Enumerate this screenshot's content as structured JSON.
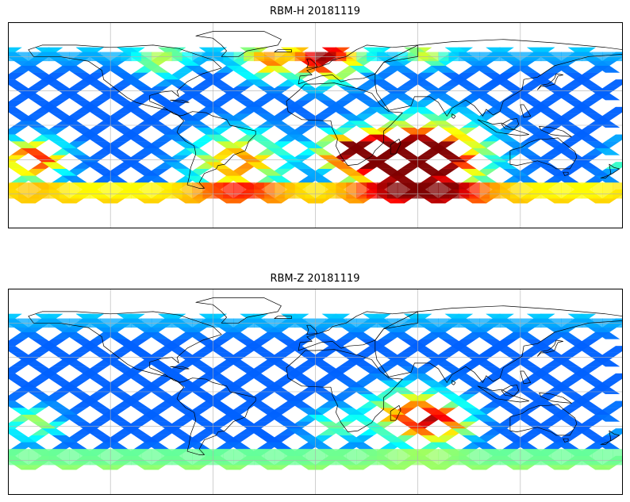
{
  "figure": {
    "panels": [
      {
        "title": "RBM-H 20181119",
        "hotspots": [
          {
            "lon": 65,
            "lat": -30,
            "strength": 1.0,
            "spread": 22
          },
          {
            "lon": 35,
            "lat": -28,
            "strength": 0.75,
            "spread": 14
          },
          {
            "lon": 15,
            "lat": -22,
            "strength": 0.5,
            "spread": 10
          },
          {
            "lon": -165,
            "lat": -30,
            "strength": 0.7,
            "spread": 12
          },
          {
            "lon": -45,
            "lat": -33,
            "strength": 0.55,
            "spread": 18
          },
          {
            "lon": 5,
            "lat": 58,
            "strength": 0.7,
            "spread": 14
          },
          {
            "lon": -30,
            "lat": 55,
            "strength": 0.45,
            "spread": 10
          },
          {
            "lon": 65,
            "lat": 62,
            "strength": 0.3,
            "spread": 8
          },
          {
            "lon": -90,
            "lat": 55,
            "strength": 0.3,
            "spread": 10
          }
        ],
        "southern_band": 0.35
      },
      {
        "title": "RBM-Z 20181119",
        "hotspots": [
          {
            "lon": 55,
            "lat": -20,
            "strength": 0.55,
            "spread": 16
          },
          {
            "lon": 75,
            "lat": -28,
            "strength": 0.45,
            "spread": 12
          },
          {
            "lon": -165,
            "lat": -28,
            "strength": 0.35,
            "spread": 10
          },
          {
            "lon": 10,
            "lat": -30,
            "strength": 0.25,
            "spread": 10
          }
        ],
        "southern_band": 0.2
      }
    ],
    "colormap": "jet",
    "track_spacing_deg": 24,
    "lat_range": [
      -68,
      68
    ],
    "lon_range": [
      -180,
      180
    ]
  }
}
